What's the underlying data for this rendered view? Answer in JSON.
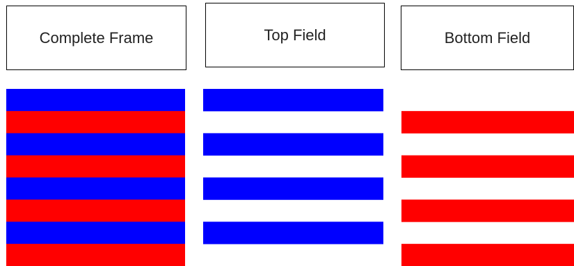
{
  "labels": {
    "complete": "Complete Frame",
    "top": "Top Field",
    "bottom": "Bottom Field"
  },
  "colors": {
    "top_field": "#0000ff",
    "bottom_field": "#ff0000",
    "background": "#ffffff",
    "border": "#000000"
  },
  "fields": {
    "line_count": 8,
    "complete_lines": [
      "top",
      "bottom",
      "top",
      "bottom",
      "top",
      "bottom",
      "top",
      "bottom"
    ],
    "top_lines": [
      "top",
      "gap",
      "top",
      "gap",
      "top",
      "gap",
      "top",
      "gap"
    ],
    "bottom_lines": [
      "gap",
      "bottom",
      "gap",
      "bottom",
      "gap",
      "bottom",
      "gap",
      "bottom"
    ]
  }
}
